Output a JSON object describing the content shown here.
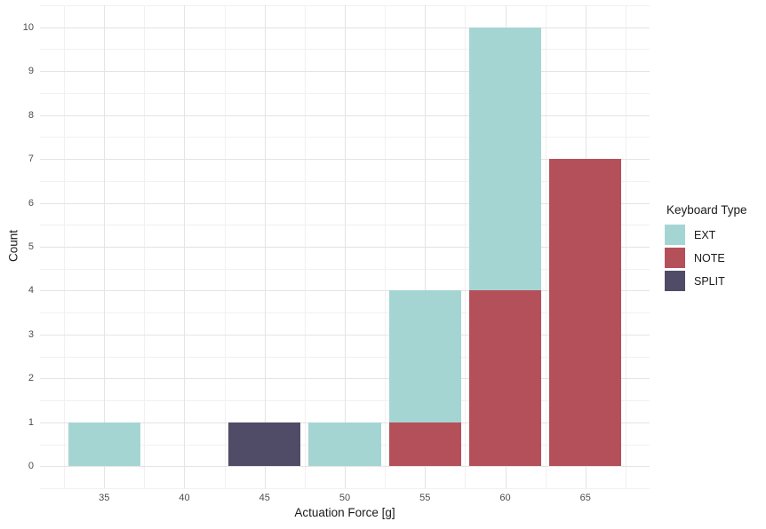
{
  "chart_data": {
    "type": "bar",
    "subtype": "stacked-histogram",
    "title": "",
    "xlabel": "Actuation Force [g]",
    "ylabel": "Count",
    "legend_title": "Keyboard Type",
    "legend_position": "right",
    "x_ticks": [
      35,
      40,
      45,
      50,
      55,
      60,
      65
    ],
    "y_ticks": [
      0,
      1,
      2,
      3,
      4,
      5,
      6,
      7,
      8,
      9,
      10
    ],
    "xlim": [
      31,
      69
    ],
    "ylim": [
      -0.5,
      10.5
    ],
    "x_minor_step": 2.5,
    "y_minor_step": 0.5,
    "x_major_step": 5,
    "bar_width": 4.5,
    "grid": {
      "background": "#ffffff",
      "major_color": "#e4e4e4",
      "minor_color": "#f1f1f1"
    },
    "colors": {
      "EXT": "#a5d5d3",
      "NOTE": "#b4505a",
      "SPLIT": "#504b66"
    },
    "legend_entries": [
      "EXT",
      "NOTE",
      "SPLIT"
    ],
    "bars": [
      {
        "x": 35,
        "segments": [
          {
            "series": "EXT",
            "value": 1
          }
        ]
      },
      {
        "x": 45,
        "segments": [
          {
            "series": "SPLIT",
            "value": 1
          }
        ]
      },
      {
        "x": 50,
        "segments": [
          {
            "series": "EXT",
            "value": 1
          }
        ]
      },
      {
        "x": 55,
        "segments": [
          {
            "series": "NOTE",
            "value": 1
          },
          {
            "series": "EXT",
            "value": 3
          }
        ]
      },
      {
        "x": 60,
        "segments": [
          {
            "series": "NOTE",
            "value": 4
          },
          {
            "series": "EXT",
            "value": 6
          }
        ]
      },
      {
        "x": 65,
        "segments": [
          {
            "series": "NOTE",
            "value": 7
          }
        ]
      }
    ]
  }
}
